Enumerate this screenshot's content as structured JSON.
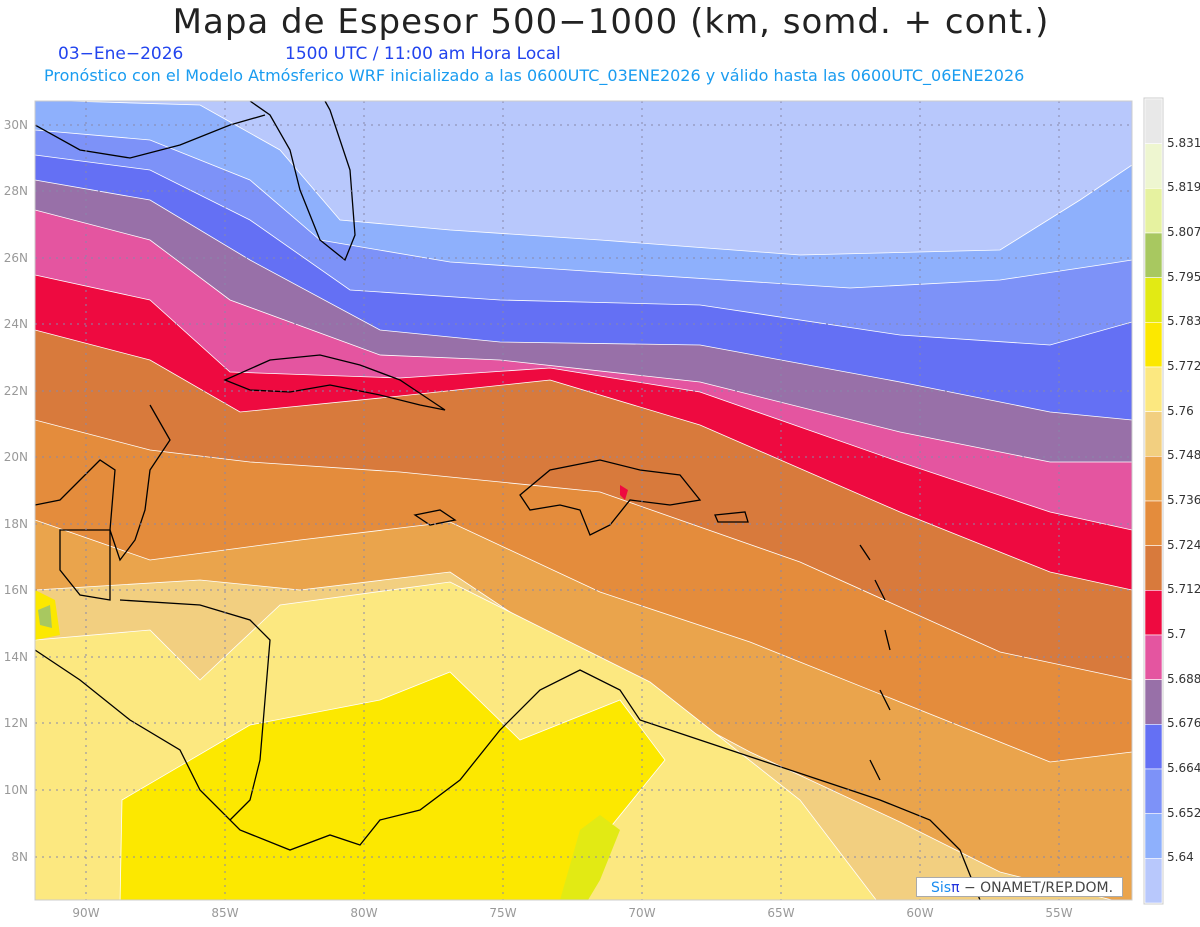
{
  "header": {
    "title": "Mapa de Espesor 500−1000 (km, somd. + cont.)",
    "date": "03−Ene−2026",
    "time": "1500 UTC / 11:00 am Hora Local",
    "description": "Pronóstico con el Modelo Atmósferico WRF inicializado a las 0600UTC_03ENE2026 y válido hasta las  0600UTC_06ENE2026"
  },
  "axes": {
    "lon_labels": [
      "90W",
      "85W",
      "80W",
      "75W",
      "70W",
      "65W",
      "60W",
      "55W"
    ],
    "lat_labels": [
      "30N",
      "28N",
      "26N",
      "24N",
      "22N",
      "20N",
      "18N",
      "16N",
      "14N",
      "12N",
      "10N",
      "8N"
    ]
  },
  "colorbar": {
    "levels": [
      "5.831",
      "5.819",
      "5.807",
      "5.795",
      "5.783",
      "5.772",
      "5.76",
      "5.748",
      "5.736",
      "5.724",
      "5.712",
      "5.7",
      "5.688",
      "5.676",
      "5.664",
      "5.652",
      "5.64"
    ],
    "colors_top_to_bottom": [
      "#e8e8e8",
      "#eef6d0",
      "#e6f2a0",
      "#a8c860",
      "#e2ea14",
      "#fce800",
      "#fce880",
      "#f2cf80",
      "#eaa44c",
      "#e48c3c",
      "#d87a3c",
      "#ee0a40",
      "#e455a0",
      "#9870a8",
      "#6470f4",
      "#7d92f8",
      "#8eb0fc",
      "#b8c8fc"
    ]
  },
  "credit": {
    "brand": "Sis",
    "brand_symbol": "π",
    "text": "−  ONAMET/REP.DOM."
  }
}
